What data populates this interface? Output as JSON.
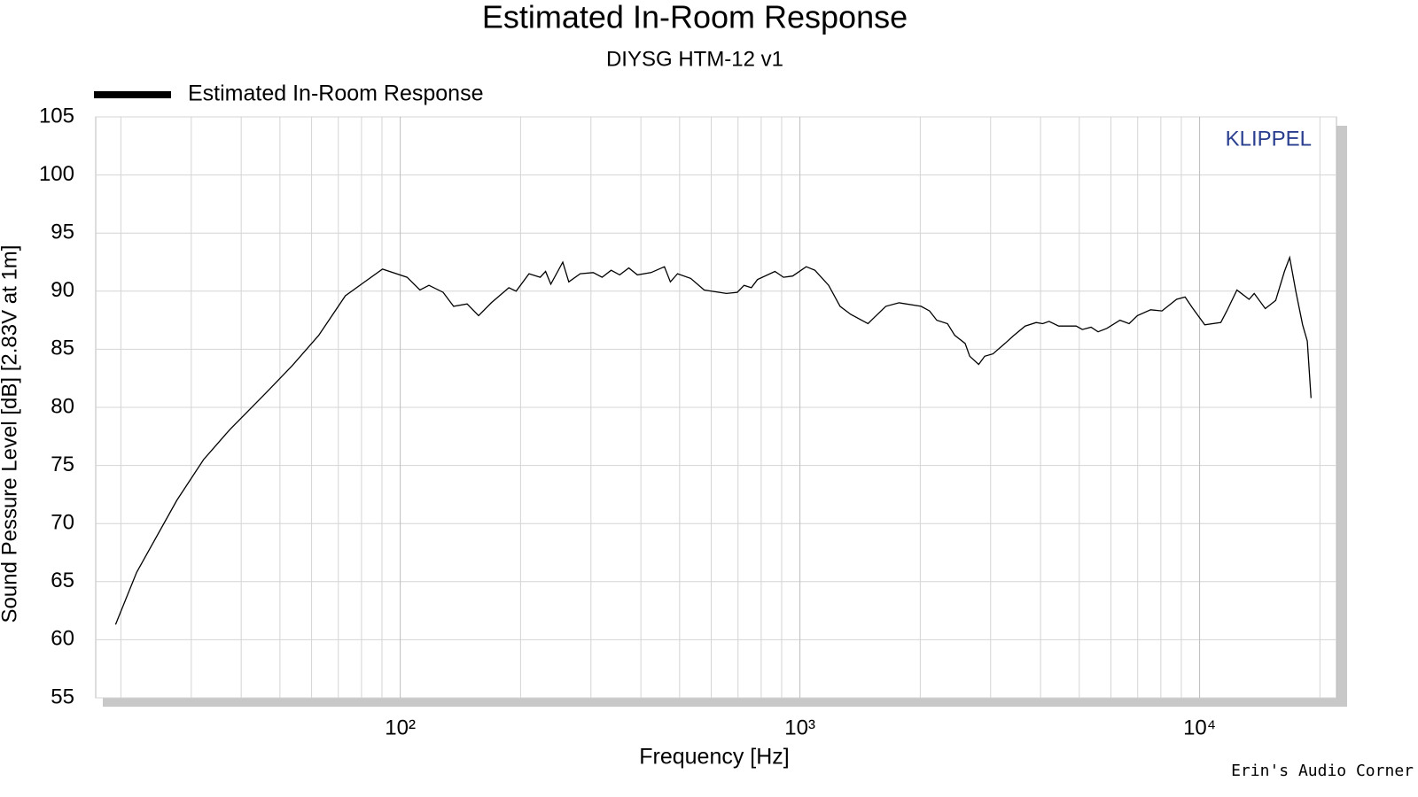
{
  "chart_data": {
    "type": "line",
    "title": "Estimated In-Room Response",
    "subtitle": "DIYSG HTM-12 v1",
    "x_label": "Frequency [Hz]",
    "y_label": "Sound Pessure Level [dB]   [2.83V at 1m]",
    "watermark": "KLIPPEL",
    "credit": "Erin's Audio Corner",
    "log_x": true,
    "grid": true,
    "legend": "top-left",
    "xlim": [
      17.3,
      22000
    ],
    "xticks": [
      {
        "value": 100,
        "label": "10²"
      },
      {
        "value": 1000,
        "label": "10³"
      },
      {
        "value": 10000,
        "label": "10⁴"
      }
    ],
    "xminorticks": [
      20,
      30,
      40,
      50,
      60,
      70,
      80,
      90,
      200,
      300,
      400,
      500,
      600,
      700,
      800,
      900,
      2000,
      3000,
      4000,
      5000,
      6000,
      7000,
      8000,
      9000,
      20000
    ],
    "ylim": [
      55,
      105
    ],
    "yticks": [
      55,
      60,
      65,
      70,
      75,
      80,
      85,
      90,
      95,
      100,
      105
    ],
    "x": [
      19.4,
      21.9,
      27.6,
      32.2,
      37.5,
      46.0,
      53.7,
      62.5,
      72.9,
      80.7,
      90.3,
      104,
      112,
      118,
      128,
      136,
      147,
      157,
      169,
      187,
      195,
      210,
      224,
      231,
      238,
      255,
      264,
      282,
      304,
      320,
      337,
      354,
      373,
      392,
      424,
      458,
      474,
      494,
      533,
      576,
      655,
      697,
      725,
      756,
      783,
      866,
      910,
      959,
      1037,
      1090,
      1180,
      1260,
      1340,
      1480,
      1520,
      1640,
      1770,
      2010,
      2110,
      2200,
      2340,
      2440,
      2590,
      2660,
      2800,
      2900,
      3040,
      3260,
      3430,
      3660,
      3900,
      4050,
      4200,
      4440,
      4910,
      5090,
      5350,
      5570,
      5860,
      6320,
      6660,
      6990,
      7540,
      8050,
      8760,
      9200,
      9580,
      10300,
      11300,
      11700,
      12400,
      13300,
      13700,
      14600,
      15500,
      16300,
      16800,
      17400,
      18100,
      18600,
      19000
    ],
    "series": [
      {
        "name": "Estimated In-Room Response",
        "color": "#000000",
        "values": [
          61.3,
          65.8,
          72,
          75.5,
          78.1,
          81.2,
          83.6,
          86.2,
          89.6,
          90.7,
          91.9,
          91.2,
          90.1,
          90.5,
          89.9,
          88.7,
          88.9,
          87.9,
          89,
          90.3,
          90,
          91.5,
          91.2,
          91.7,
          90.6,
          92.5,
          90.8,
          91.5,
          91.6,
          91.2,
          91.8,
          91.4,
          92,
          91.4,
          91.6,
          92.1,
          90.8,
          91.5,
          91.1,
          90.1,
          89.8,
          89.9,
          90.5,
          90.3,
          91,
          91.7,
          91.2,
          91.3,
          92.1,
          91.8,
          90.5,
          88.7,
          88,
          87.2,
          87.6,
          88.7,
          89,
          88.7,
          88.3,
          87.5,
          87.2,
          86.2,
          85.5,
          84.4,
          83.7,
          84.4,
          84.6,
          85.5,
          86.2,
          87,
          87.3,
          87.2,
          87.4,
          87,
          87,
          86.7,
          86.9,
          86.5,
          86.8,
          87.5,
          87.2,
          87.9,
          88.4,
          88.3,
          89.3,
          89.5,
          88.6,
          87.1,
          87.3,
          88.3,
          90.1,
          89.3,
          89.8,
          88.5,
          89.2,
          91.7,
          92.9,
          90,
          87.1,
          85.7,
          80.8
        ]
      }
    ]
  }
}
